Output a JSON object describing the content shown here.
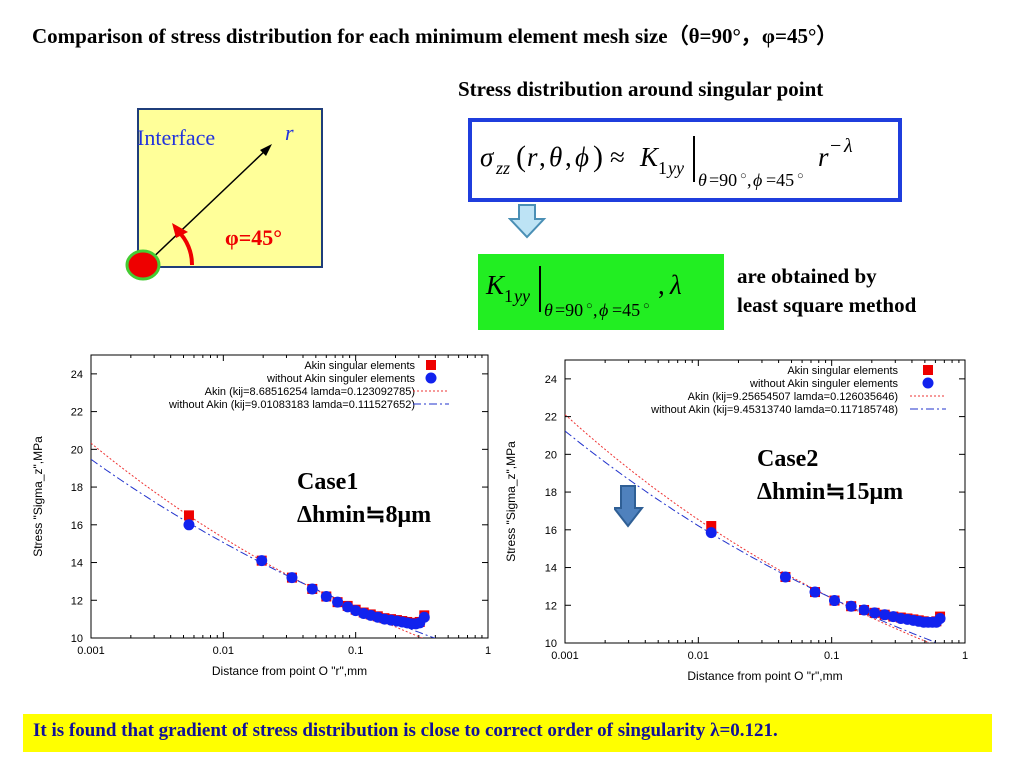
{
  "slide": {
    "title": "Comparison of stress distribution for each minimum element mesh size（θ=90°，φ=45°）",
    "diagram": {
      "interface_label": "Interface",
      "r_label": "r",
      "phi_label": "φ=45°",
      "colors": {
        "box_fill": "#ffff99",
        "dot": "#ee0000",
        "dot_border": "#44cc33",
        "arc": "#ee0000",
        "text_blue": "#2233dd"
      }
    },
    "stress_heading": "Stress distribution around singular point",
    "least_square": {
      "line1": "are obtained by",
      "line2": "least square method"
    },
    "conclusion": "It is found that gradient of stress distribution is close to correct order of singularity   λ=0.121.",
    "colors": {
      "formula_border": "#1f3ddd",
      "green_box": "#22ee22",
      "arrow_fill": "#bde3f5",
      "arrow_stroke": "#4a8fb5",
      "bottom_bar": "#ffff00"
    }
  },
  "chart_data": [
    {
      "type": "scatter",
      "case_label": {
        "line1": "Case1",
        "line2": "Δhmin≒8μm"
      },
      "xlabel": "Distance from point O \"r\",mm",
      "ylabel": "Stress \"Sigma_z\",MPa",
      "xscale": "log",
      "xlim": [
        0.001,
        1
      ],
      "ylim": [
        10,
        25
      ],
      "x_ticks": [
        "0.001",
        "0.01",
        "0.1",
        "1"
      ],
      "y_ticks": [
        "10",
        "12",
        "14",
        "16",
        "18",
        "20",
        "22",
        "24"
      ],
      "legend_position": "top-right",
      "series": [
        {
          "name": "Akin singular elements",
          "marker": "square",
          "color": "#ee0000",
          "x": [
            0.0055,
            0.0195,
            0.033,
            0.047,
            0.06,
            0.073,
            0.087,
            0.1,
            0.115,
            0.13,
            0.147,
            0.165,
            0.185,
            0.205,
            0.225,
            0.245,
            0.265,
            0.285,
            0.305,
            0.33
          ],
          "y": [
            16.5,
            14.1,
            13.2,
            12.6,
            12.2,
            11.9,
            11.7,
            11.5,
            11.35,
            11.25,
            11.15,
            11.05,
            11.0,
            10.95,
            10.9,
            10.85,
            10.8,
            10.8,
            10.85,
            11.2
          ]
        },
        {
          "name": "without Akin singuler elements",
          "marker": "circle",
          "color": "#1122ee",
          "x": [
            0.0055,
            0.0195,
            0.033,
            0.047,
            0.06,
            0.073,
            0.087,
            0.1,
            0.115,
            0.13,
            0.147,
            0.165,
            0.185,
            0.205,
            0.225,
            0.245,
            0.265,
            0.285,
            0.305,
            0.33
          ],
          "y": [
            16.0,
            14.1,
            13.2,
            12.6,
            12.2,
            11.9,
            11.65,
            11.45,
            11.3,
            11.2,
            11.1,
            11.0,
            10.95,
            10.9,
            10.85,
            10.8,
            10.75,
            10.75,
            10.8,
            11.1
          ]
        },
        {
          "name": "Akin (kij=8.68516254 lamda=0.123092785)",
          "style": "dotted",
          "color": "#ee3333",
          "K": 8.68516254,
          "lambda": 0.123092785
        },
        {
          "name": "without Akin (kij=9.01083183 lamda=0.111527652)",
          "style": "dash-dot",
          "color": "#2233cc",
          "K": 9.01083183,
          "lambda": 0.111527652
        }
      ]
    },
    {
      "type": "scatter",
      "case_label": {
        "line1": "Case2",
        "line2": "Δhmin≒15μm"
      },
      "xlabel": "Distance from point O \"r\",mm",
      "ylabel": "Stress \"Sigma_z\",MPa",
      "xscale": "log",
      "xlim": [
        0.001,
        1
      ],
      "ylim": [
        10,
        25
      ],
      "x_ticks": [
        "0.001",
        "0.01",
        "0.1",
        "1"
      ],
      "y_ticks": [
        "10",
        "12",
        "14",
        "16",
        "18",
        "20",
        "22",
        "24"
      ],
      "legend_position": "top-right",
      "series": [
        {
          "name": "Akin singular elements",
          "marker": "square",
          "color": "#ee0000",
          "x": [
            0.0125,
            0.045,
            0.075,
            0.105,
            0.14,
            0.175,
            0.21,
            0.25,
            0.29,
            0.33,
            0.37,
            0.41,
            0.45,
            0.49,
            0.53,
            0.57,
            0.61,
            0.65
          ],
          "y": [
            16.2,
            13.5,
            12.7,
            12.25,
            11.95,
            11.75,
            11.6,
            11.5,
            11.4,
            11.35,
            11.3,
            11.25,
            11.2,
            11.15,
            11.1,
            11.1,
            11.15,
            11.4
          ]
        },
        {
          "name": "without Akin singuler elements",
          "marker": "circle",
          "color": "#1122ee",
          "x": [
            0.0125,
            0.045,
            0.075,
            0.105,
            0.14,
            0.175,
            0.21,
            0.25,
            0.29,
            0.33,
            0.37,
            0.41,
            0.45,
            0.49,
            0.53,
            0.57,
            0.61,
            0.65
          ],
          "y": [
            15.85,
            13.5,
            12.7,
            12.25,
            11.95,
            11.75,
            11.6,
            11.5,
            11.4,
            11.3,
            11.25,
            11.2,
            11.15,
            11.1,
            11.1,
            11.1,
            11.1,
            11.3
          ]
        },
        {
          "name": "Akin (kij=9.25654507 lamda=0.126035646)",
          "style": "dotted",
          "color": "#ee3333",
          "K": 9.25654507,
          "lambda": 0.126035646
        },
        {
          "name": "without Akin (kij=9.45313740 lamda=0.117185748)",
          "style": "dash-dot",
          "color": "#2233cc",
          "K": 9.4531374,
          "lambda": 0.117185748
        }
      ]
    }
  ]
}
